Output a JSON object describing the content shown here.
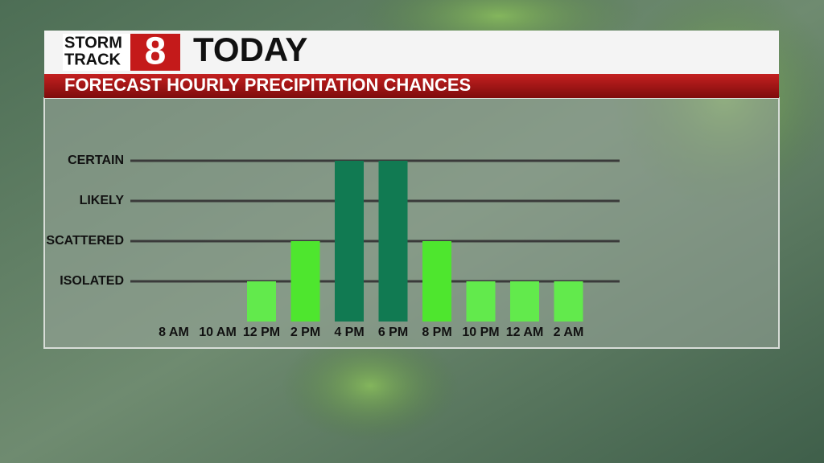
{
  "logo": {
    "line1": "STORM",
    "line2": "TRACK",
    "number": "8"
  },
  "chart_data": {
    "type": "bar",
    "title": "TODAY",
    "subtitle": "FORECAST HOURLY PRECIPITATION CHANCES",
    "categories": [
      "8 AM",
      "10 AM",
      "12 PM",
      "2 PM",
      "4 PM",
      "6 PM",
      "8 PM",
      "10 PM",
      "12 AM",
      "2 AM"
    ],
    "values": [
      0,
      0,
      1,
      2,
      4,
      4,
      2,
      1,
      1,
      1
    ],
    "colors": [
      "#5fe84a",
      "#5fe84a",
      "#62ea4c",
      "#4ee62e",
      "#117a52",
      "#117a52",
      "#4ee62e",
      "#62ea4c",
      "#62ea4c",
      "#62ea4c"
    ],
    "ylim": [
      0,
      4
    ],
    "yticks": [
      {
        "value": 1,
        "label": "ISOLATED"
      },
      {
        "value": 2,
        "label": "SCATTERED"
      },
      {
        "value": 3,
        "label": "LIKELY"
      },
      {
        "value": 4,
        "label": "CERTAIN"
      }
    ],
    "grid": true
  }
}
